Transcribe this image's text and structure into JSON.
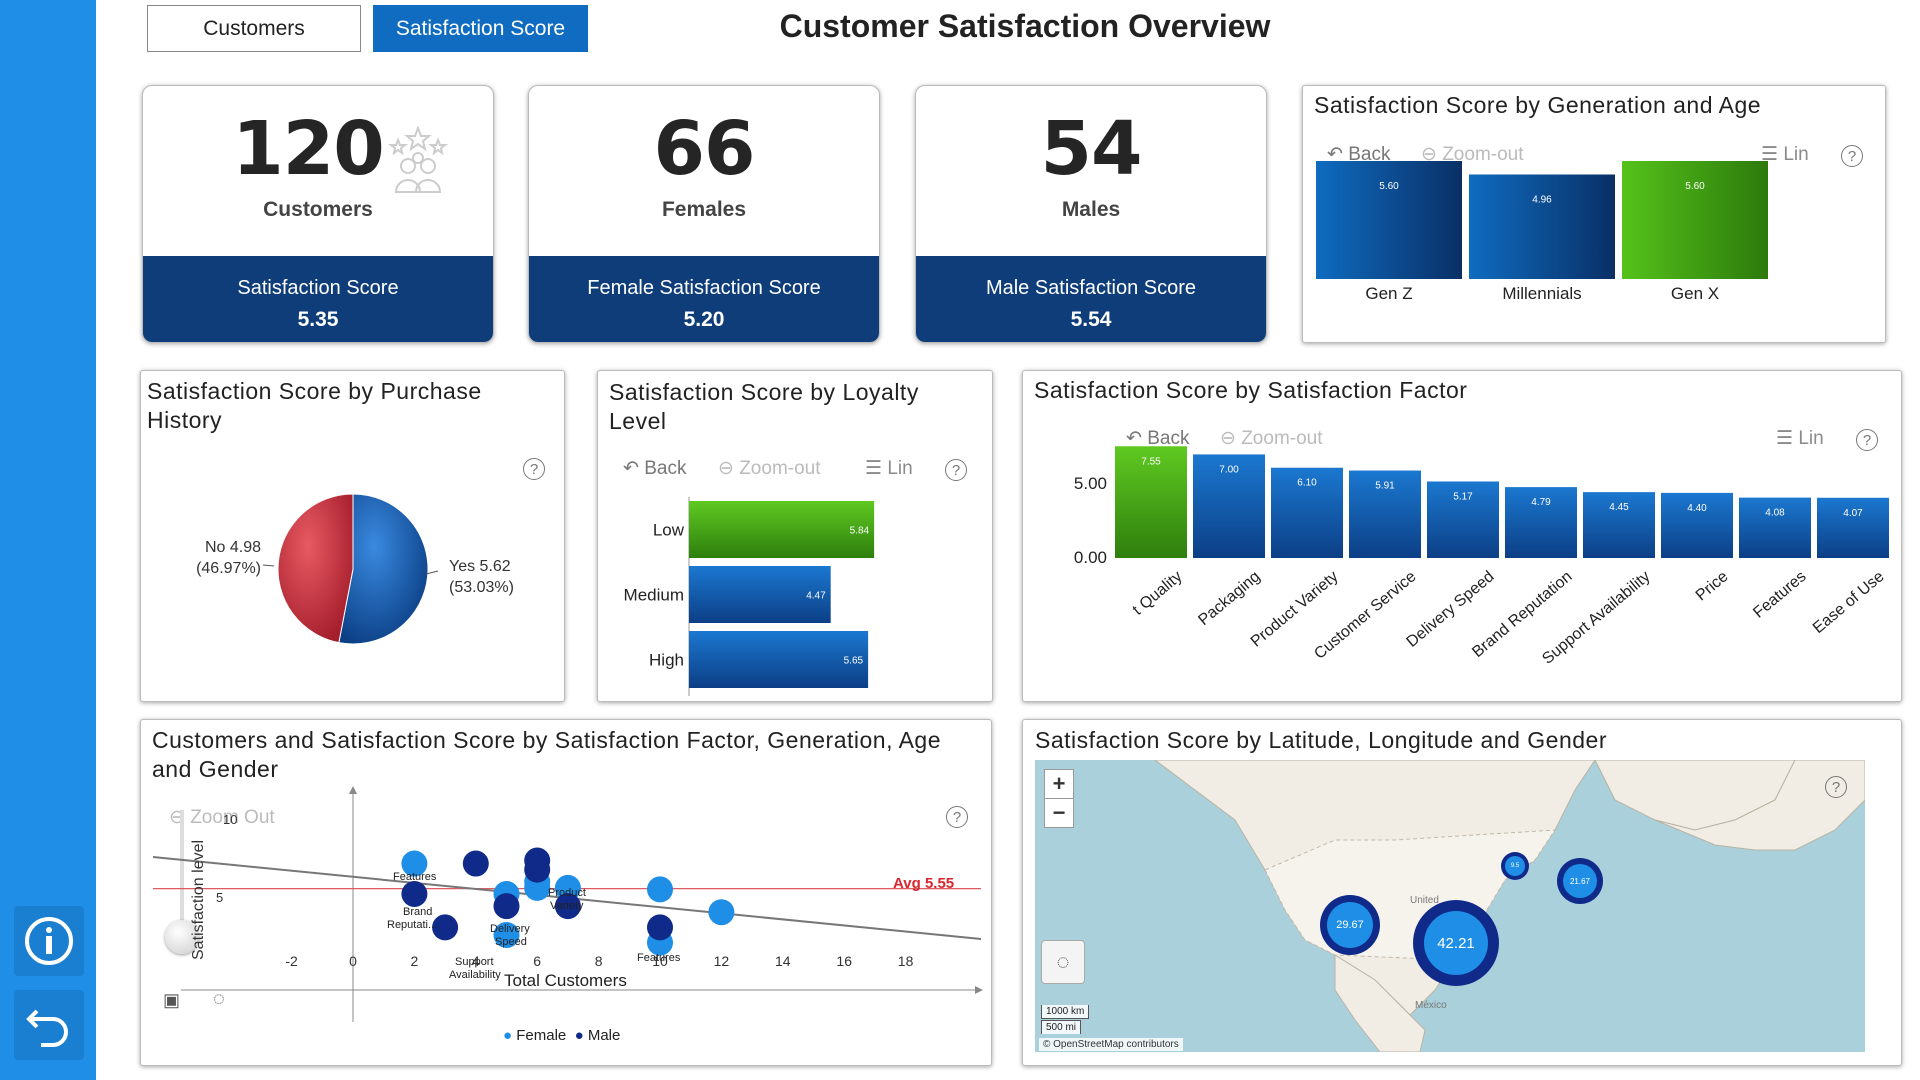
{
  "nav": {
    "tab_customers": "Customers",
    "tab_satisfaction": "Satisfaction Score",
    "page_title": "Customer Satisfaction Overview"
  },
  "kpis": [
    {
      "value": "120",
      "label": "Customers",
      "band_label": "Satisfaction Score",
      "band_value": "5.35"
    },
    {
      "value": "66",
      "label": "Females",
      "band_label": "Female Satisfaction Score",
      "band_value": "5.20"
    },
    {
      "value": "54",
      "label": "Males",
      "band_label": "Male Satisfaction Score",
      "band_value": "5.54"
    }
  ],
  "toolbar": {
    "back": "Back",
    "zoom_out": "Zoom-out",
    "lin": "Lin",
    "zoom_out2": "Zoom Out"
  },
  "generation_chart": {
    "title": "Satisfaction Score by Generation and Age"
  },
  "purchase_chart": {
    "title": "Satisfaction Score by Purchase History",
    "label_no_1": "No 4.98",
    "label_no_2": "(46.97%)",
    "label_yes_1": "Yes 5.62",
    "label_yes_2": "(53.03%)"
  },
  "loyalty_chart": {
    "title": "Satisfaction Score by Loyalty Level"
  },
  "factor_chart": {
    "title": "Satisfaction Score by Satisfaction Factor",
    "y_ticks": [
      "5.00",
      "0.00"
    ]
  },
  "scatter_chart": {
    "title": "Customers and Satisfaction Score by Satisfaction Factor, Generation, Age and Gender",
    "ylabel": "Satisfaction level",
    "xlabel": "Total Customers",
    "avg_label": "Avg 5.55",
    "x_ticks": [
      "-2",
      "0",
      "2",
      "4",
      "6",
      "8",
      "10",
      "12",
      "14",
      "16",
      "18"
    ],
    "y_tick_10": "10",
    "y_tick_5": "5",
    "legend_female": "Female",
    "legend_male": "Male",
    "point_labels": {
      "features1": "Features",
      "brand1": "Brand",
      "brand2": "Reputati...",
      "product1": "Product",
      "product2": "Variety",
      "delivery1": "Delivery",
      "delivery2": "Speed",
      "support1": "Support",
      "support2": "Availability",
      "features2": "Features"
    }
  },
  "map_chart": {
    "title": "Satisfaction Score by Latitude, Longitude and Gender",
    "zoom_in": "+",
    "zoom_out": "−",
    "scale_km": "1000 km",
    "scale_mi": "500 mi",
    "attribution": "© OpenStreetMap contributors",
    "country_label": "United",
    "mexico_label": "México",
    "clusters": [
      {
        "label": "29.67"
      },
      {
        "label": "42.21"
      },
      {
        "label": "21.67"
      },
      {
        "label": "9.5"
      }
    ]
  },
  "chart_data": [
    {
      "type": "bar",
      "title": "Satisfaction Score by Generation and Age",
      "categories": [
        "Gen Z",
        "Millennials",
        "Gen X"
      ],
      "values": [
        5.6,
        4.96,
        5.6
      ],
      "labels": [
        "5.60",
        "4.96",
        "5.60"
      ],
      "ylim": [
        0,
        5.6
      ]
    },
    {
      "type": "pie",
      "title": "Satisfaction Score by Purchase History",
      "categories": [
        "No",
        "Yes"
      ],
      "values": [
        4.98,
        5.62
      ],
      "percent": [
        46.97,
        53.03
      ]
    },
    {
      "type": "bar",
      "orientation": "horizontal",
      "title": "Satisfaction Score by Loyalty Level",
      "categories": [
        "Low",
        "Medium",
        "High"
      ],
      "values": [
        5.84,
        4.47,
        5.65
      ],
      "labels": [
        "5.84",
        "4.47",
        "5.65"
      ],
      "xlim": [
        0,
        6
      ]
    },
    {
      "type": "bar",
      "title": "Satisfaction Score by Satisfaction Factor",
      "categories": [
        "Product Quality",
        "Packaging",
        "Product Variety",
        "Customer Service",
        "Delivery Speed",
        "Brand Reputation",
        "Support Availability",
        "Price",
        "Features",
        "Ease of Use"
      ],
      "category_labels": [
        "t Quality",
        "Packaging",
        "Product Variety",
        "Customer Service",
        "Delivery Speed",
        "Brand Reputation",
        "Support Availability",
        "Price",
        "Features",
        "Ease of Use"
      ],
      "values": [
        7.55,
        7.0,
        6.1,
        5.91,
        5.17,
        4.79,
        4.45,
        4.4,
        4.08,
        4.07
      ],
      "labels": [
        "7.55",
        "7.00",
        "6.10",
        "5.91",
        "5.17",
        "4.79",
        "4.45",
        "4.40",
        "4.08",
        "4.07"
      ],
      "ylim": [
        0,
        7.6
      ]
    },
    {
      "type": "scatter",
      "title": "Customers and Satisfaction Score by Satisfaction Factor, Generation, Age and Gender",
      "xlabel": "Total Customers",
      "ylabel": "Satisfaction level",
      "xlim": [
        -4,
        20
      ],
      "ylim": [
        0,
        12
      ],
      "avg": 5.55,
      "series": [
        {
          "name": "Female",
          "points": [
            [
              2,
              7.2
            ],
            [
              5,
              5.2
            ],
            [
              6,
              5.6
            ],
            [
              6,
              6.0
            ],
            [
              7,
              5.6
            ],
            [
              10,
              5.5
            ],
            [
              12,
              4.0
            ],
            [
              5,
              2.5
            ],
            [
              10,
              2.0
            ]
          ]
        },
        {
          "name": "Male",
          "points": [
            [
              2,
              5.2
            ],
            [
              4,
              7.2
            ],
            [
              6,
              7.4
            ],
            [
              6,
              6.8
            ],
            [
              7,
              4.4
            ],
            [
              3,
              3.0
            ],
            [
              5,
              4.4
            ],
            [
              10,
              3.0
            ]
          ]
        }
      ]
    }
  ]
}
